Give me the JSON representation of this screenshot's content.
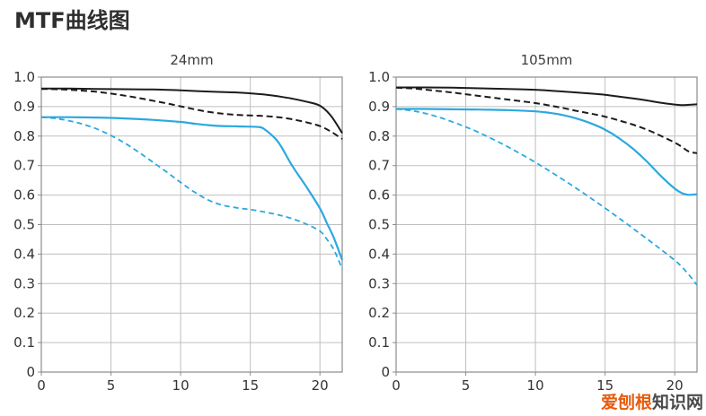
{
  "page": {
    "title": "MTF曲线图"
  },
  "watermark": {
    "highlight": "爱刨根",
    "rest": "知识网",
    "highlight_color": "#e65c0e",
    "rest_color": "#4a4a4a"
  },
  "colors": {
    "curve_black": "#1c1c1c",
    "curve_blue": "#2ba8e0",
    "grid": "#bfbfbf",
    "border": "#8c8c8c",
    "tick_text": "#333333"
  },
  "chart_data": [
    {
      "type": "line",
      "title": "24mm",
      "xlim": [
        0,
        21.6
      ],
      "ylim": [
        0,
        1.0
      ],
      "xtick_values": [
        0,
        5,
        10,
        15,
        20
      ],
      "xtick_labels": [
        "0",
        "5",
        "10",
        "15",
        "20"
      ],
      "ytick_values": [
        0,
        0.1,
        0.2,
        0.3,
        0.4,
        0.5,
        0.6,
        0.7,
        0.8,
        0.9,
        1.0
      ],
      "ytick_labels": [
        "0",
        "0.1",
        "0.2",
        "0.3",
        "0.4",
        "0.5",
        "0.6",
        "0.7",
        "0.8",
        "0.9",
        "1.0"
      ],
      "grid": true,
      "legend": "none",
      "series": [
        {
          "name": "black-solid",
          "color": "#1c1c1c",
          "dash": "none",
          "width": 2,
          "x": [
            0,
            2,
            4,
            6,
            8,
            10,
            12,
            14,
            15,
            16,
            17,
            18,
            19,
            20,
            20.8,
            21.6
          ],
          "y": [
            0.961,
            0.961,
            0.96,
            0.959,
            0.958,
            0.955,
            0.951,
            0.948,
            0.945,
            0.941,
            0.935,
            0.927,
            0.917,
            0.903,
            0.868,
            0.81
          ]
        },
        {
          "name": "black-dashed",
          "color": "#1c1c1c",
          "dash": "7 4",
          "width": 2,
          "x": [
            0,
            1,
            2,
            3,
            4,
            5,
            6,
            7,
            8,
            9,
            10,
            11,
            12,
            13,
            14,
            15,
            16,
            17,
            18,
            19,
            20,
            20.8,
            21.6
          ],
          "y": [
            0.96,
            0.959,
            0.957,
            0.954,
            0.95,
            0.944,
            0.937,
            0.929,
            0.92,
            0.911,
            0.901,
            0.891,
            0.882,
            0.876,
            0.872,
            0.87,
            0.868,
            0.864,
            0.857,
            0.847,
            0.834,
            0.815,
            0.79
          ]
        },
        {
          "name": "blue-solid",
          "color": "#2ba8e0",
          "dash": "none",
          "width": 2.2,
          "x": [
            0,
            2,
            4,
            6,
            8,
            10,
            11,
            12,
            13,
            14,
            15,
            15.5,
            16,
            17,
            18,
            19,
            20,
            20.5,
            21,
            21.6
          ],
          "y": [
            0.864,
            0.864,
            0.863,
            0.86,
            0.855,
            0.848,
            0.842,
            0.837,
            0.834,
            0.833,
            0.832,
            0.831,
            0.824,
            0.78,
            0.7,
            0.63,
            0.555,
            0.505,
            0.455,
            0.38
          ]
        },
        {
          "name": "blue-dashed",
          "color": "#2ba8e0",
          "dash": "6 4",
          "width": 1.8,
          "x": [
            0,
            1,
            2,
            3,
            4,
            5,
            6,
            7,
            8,
            9,
            10,
            11,
            12,
            13,
            14,
            15,
            16,
            17,
            18,
            19,
            20,
            20.5,
            21,
            21.6
          ],
          "y": [
            0.864,
            0.86,
            0.852,
            0.84,
            0.824,
            0.802,
            0.776,
            0.745,
            0.712,
            0.678,
            0.643,
            0.61,
            0.583,
            0.566,
            0.557,
            0.551,
            0.543,
            0.533,
            0.52,
            0.502,
            0.478,
            0.45,
            0.415,
            0.35
          ]
        }
      ]
    },
    {
      "type": "line",
      "title": "105mm",
      "xlim": [
        0,
        21.6
      ],
      "ylim": [
        0,
        1.0
      ],
      "xtick_values": [
        0,
        5,
        10,
        15,
        20
      ],
      "xtick_labels": [
        "0",
        "5",
        "10",
        "15",
        "20"
      ],
      "ytick_values": [
        0,
        0.1,
        0.2,
        0.3,
        0.4,
        0.5,
        0.6,
        0.7,
        0.8,
        0.9,
        1.0
      ],
      "ytick_labels": [
        "0",
        "0.1",
        "0.2",
        "0.3",
        "0.4",
        "0.5",
        "0.6",
        "0.7",
        "0.8",
        "0.9",
        "1.0"
      ],
      "grid": true,
      "legend": "none",
      "series": [
        {
          "name": "black-solid",
          "color": "#1c1c1c",
          "dash": "none",
          "width": 2,
          "x": [
            0,
            2,
            4,
            6,
            8,
            10,
            12,
            14,
            15,
            16,
            17,
            18,
            19,
            20,
            20.5,
            21,
            21.6
          ],
          "y": [
            0.965,
            0.965,
            0.964,
            0.962,
            0.96,
            0.957,
            0.951,
            0.944,
            0.94,
            0.934,
            0.928,
            0.921,
            0.913,
            0.907,
            0.905,
            0.906,
            0.908
          ]
        },
        {
          "name": "black-dashed",
          "color": "#1c1c1c",
          "dash": "7 4",
          "width": 2,
          "x": [
            0,
            1,
            2,
            3,
            4,
            5,
            6,
            7,
            8,
            9,
            10,
            11,
            12,
            13,
            14,
            15,
            16,
            17,
            18,
            19,
            20,
            20.5,
            21,
            21.6
          ],
          "y": [
            0.964,
            0.962,
            0.958,
            0.953,
            0.948,
            0.942,
            0.936,
            0.93,
            0.924,
            0.918,
            0.912,
            0.904,
            0.895,
            0.885,
            0.876,
            0.866,
            0.853,
            0.839,
            0.822,
            0.801,
            0.778,
            0.764,
            0.748,
            0.742
          ]
        },
        {
          "name": "blue-solid",
          "color": "#2ba8e0",
          "dash": "none",
          "width": 2.2,
          "x": [
            0,
            2,
            4,
            6,
            8,
            10,
            11,
            12,
            13,
            14,
            15,
            16,
            17,
            18,
            19,
            20,
            20.5,
            21,
            21.6
          ],
          "y": [
            0.892,
            0.892,
            0.891,
            0.89,
            0.888,
            0.884,
            0.879,
            0.871,
            0.859,
            0.843,
            0.822,
            0.793,
            0.757,
            0.714,
            0.665,
            0.622,
            0.607,
            0.601,
            0.603
          ]
        },
        {
          "name": "blue-dashed",
          "color": "#2ba8e0",
          "dash": "6 4",
          "width": 1.8,
          "x": [
            0,
            1,
            2,
            3,
            4,
            5,
            6,
            7,
            8,
            9,
            10,
            11,
            12,
            13,
            14,
            15,
            16,
            17,
            18,
            19,
            20,
            20.5,
            21,
            21.6
          ],
          "y": [
            0.892,
            0.887,
            0.878,
            0.865,
            0.849,
            0.831,
            0.811,
            0.788,
            0.764,
            0.738,
            0.711,
            0.682,
            0.652,
            0.621,
            0.589,
            0.556,
            0.522,
            0.487,
            0.452,
            0.416,
            0.379,
            0.357,
            0.331,
            0.295
          ]
        }
      ]
    }
  ]
}
